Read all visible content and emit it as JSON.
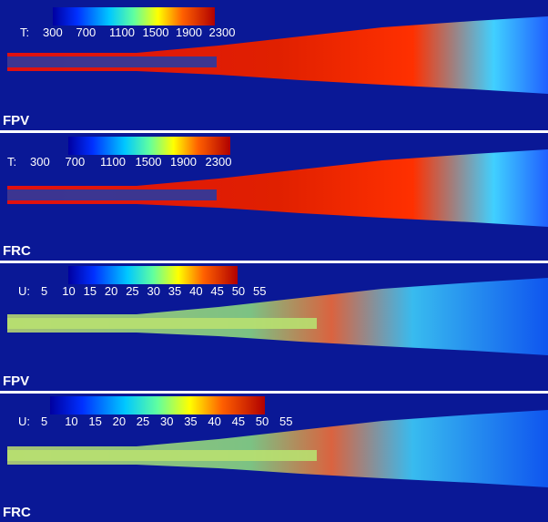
{
  "panels": [
    {
      "label": "FPV",
      "colorbar": {
        "variable": "T:",
        "ticks": [
          300,
          700,
          1100,
          1500,
          1900,
          2300
        ]
      }
    },
    {
      "label": "FRC",
      "colorbar": {
        "variable": "T:",
        "ticks": [
          300,
          700,
          1100,
          1500,
          1900,
          2300
        ]
      }
    },
    {
      "label": "FPV",
      "colorbar": {
        "variable": "U:",
        "ticks": [
          5,
          10,
          15,
          20,
          25,
          30,
          35,
          40,
          45,
          50,
          55
        ]
      }
    },
    {
      "label": "FRC",
      "colorbar": {
        "variable": "U:",
        "ticks": [
          5,
          10,
          15,
          20,
          25,
          30,
          35,
          40,
          45,
          50,
          55
        ]
      }
    }
  ]
}
